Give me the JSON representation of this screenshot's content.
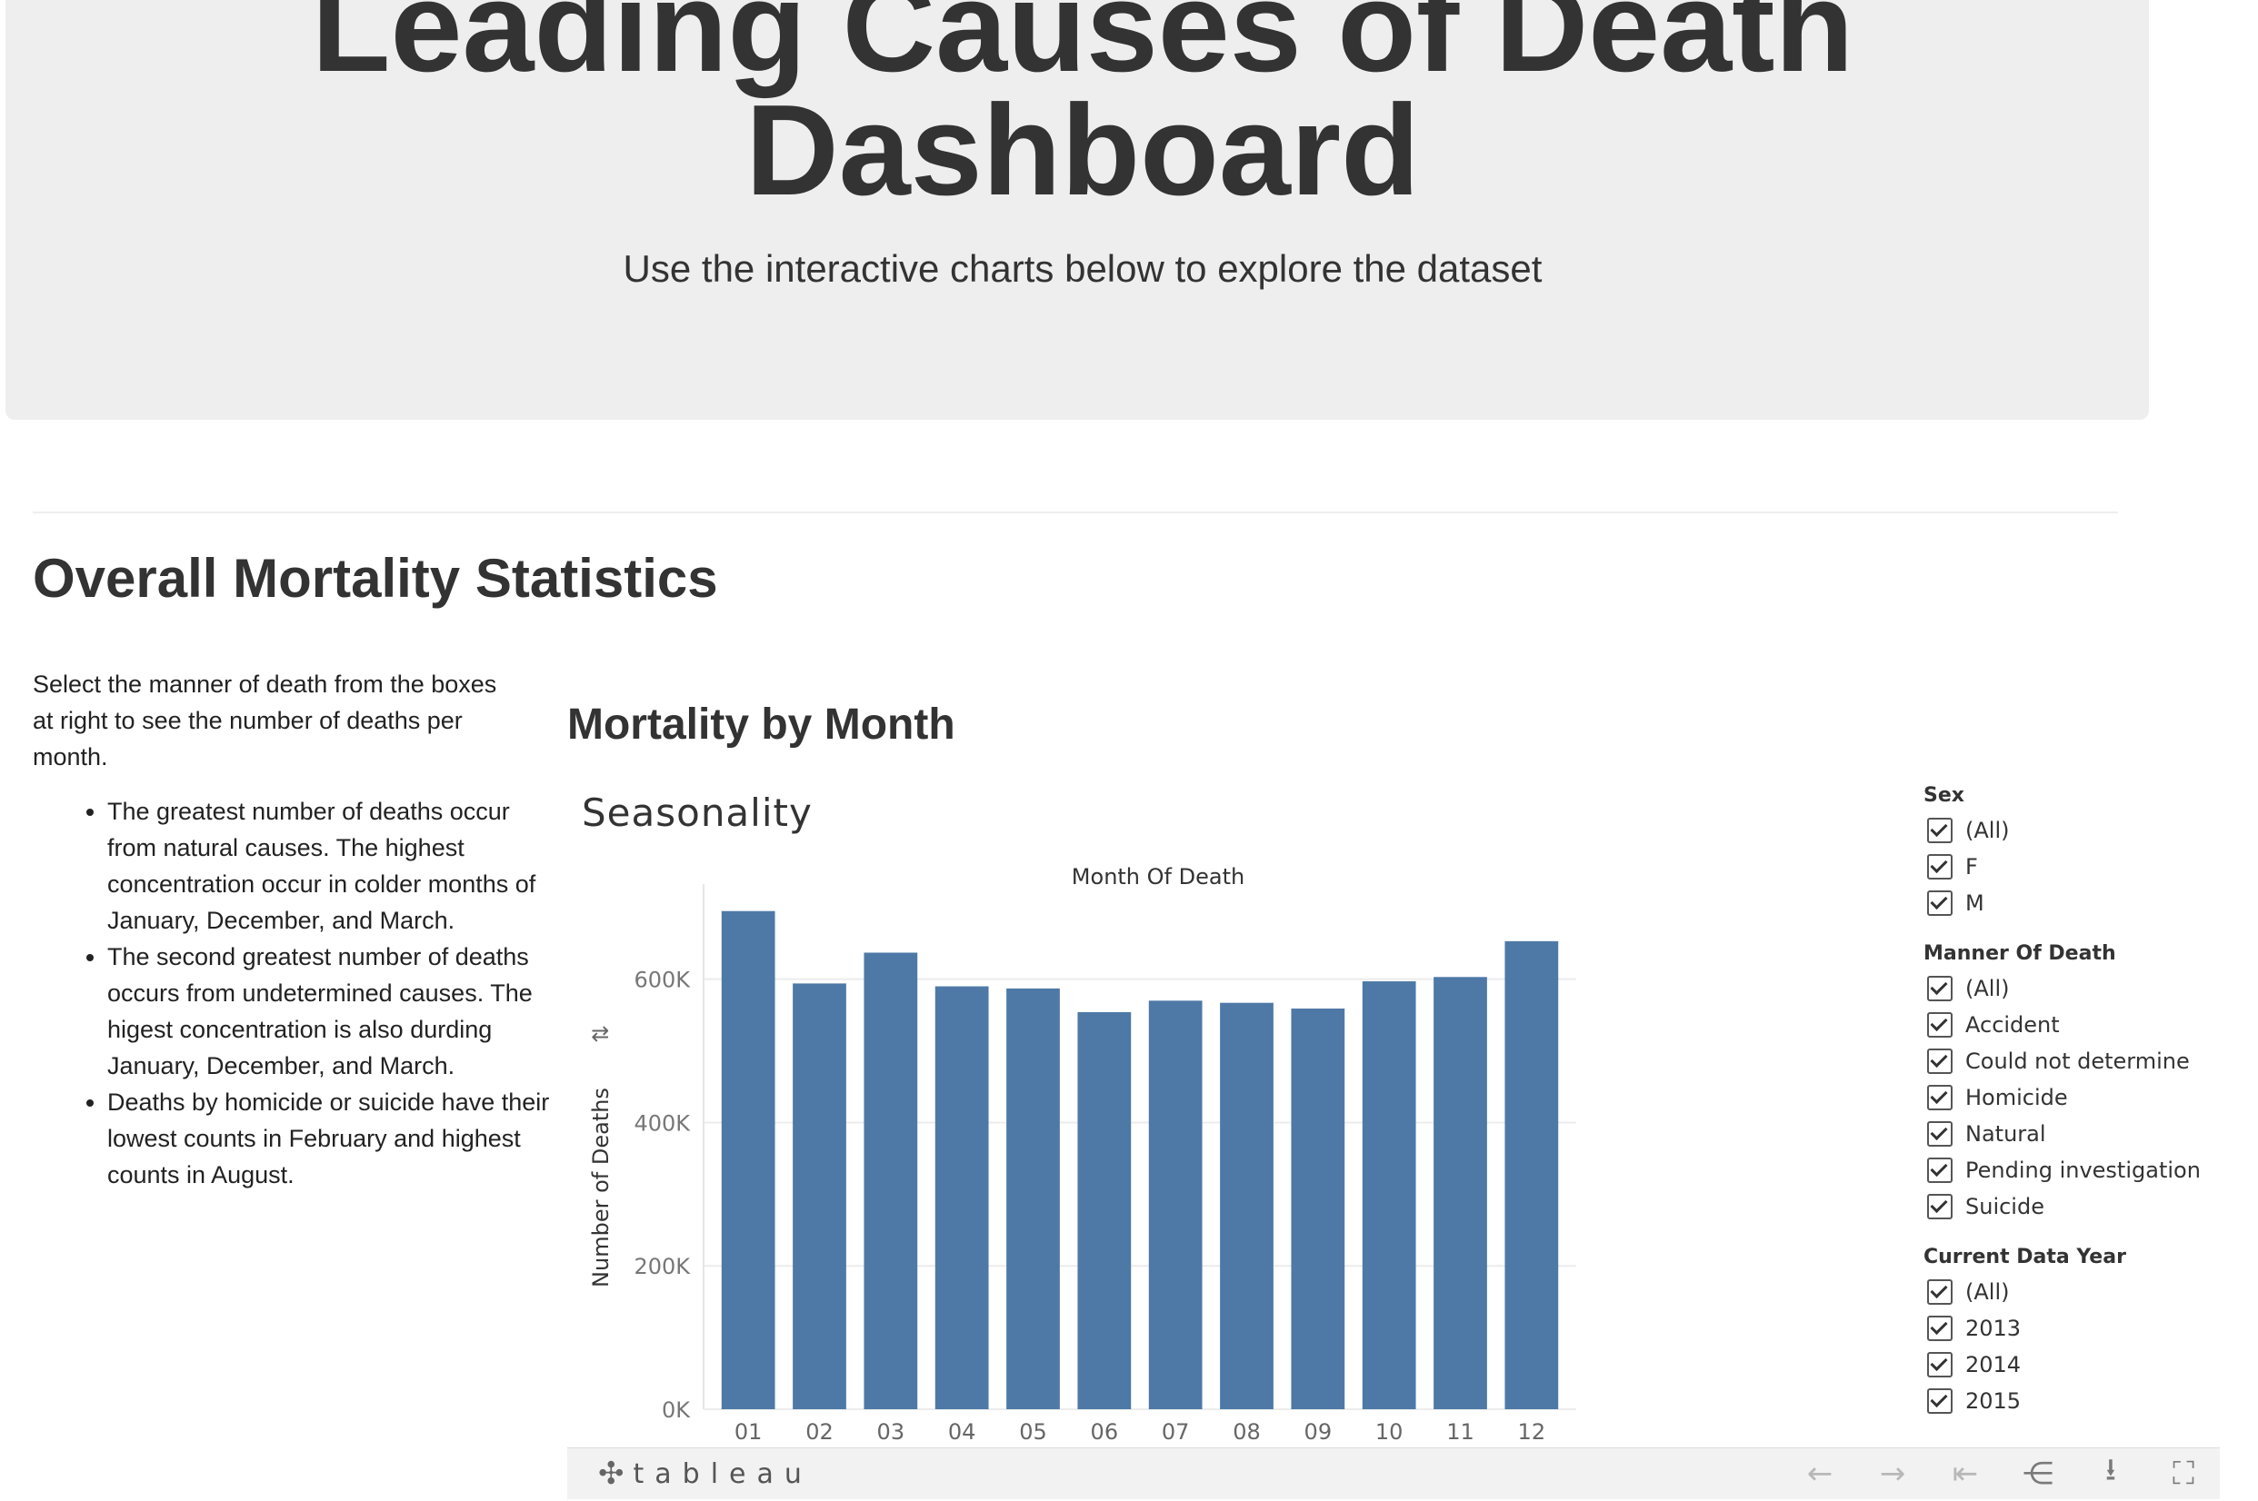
{
  "header": {
    "title_line1": "Leading Causes of Death",
    "title_line2": "Dashboard",
    "subtitle": "Use the interactive charts below to explore the dataset"
  },
  "section": {
    "title": "Overall Mortality Statistics",
    "intro": "Select the manner of death from the boxes at right to see the number of deaths per month.",
    "bullets": [
      "The greatest number of deaths occur from natural causes. The highest concentration occur in colder months of January, December, and March.",
      "The second greatest number of deaths occurs from undetermined causes. The higest concentration is also durding January, December, and March.",
      "Deaths by homicide or suicide have their lowest counts in February and highest counts in August."
    ]
  },
  "viz": {
    "heading": "Mortality by Month",
    "sheet_title": "Seasonality",
    "sort_icon": "sort-icon",
    "bar_color": "#4e79a7"
  },
  "chart_data": {
    "type": "bar",
    "title": "Month Of Death",
    "xlabel": "Month Of Death",
    "ylabel": "Number of Deaths",
    "categories": [
      "01",
      "02",
      "03",
      "04",
      "05",
      "06",
      "07",
      "08",
      "09",
      "10",
      "11",
      "12"
    ],
    "values": [
      695000,
      594000,
      637000,
      590000,
      587000,
      554000,
      570000,
      567000,
      559000,
      597000,
      603000,
      653000
    ],
    "ylim": [
      0,
      720000
    ],
    "yticks": [
      0,
      200000,
      400000,
      600000
    ],
    "ytick_labels": [
      "0K",
      "200K",
      "400K",
      "600K"
    ],
    "grid": true
  },
  "filters": {
    "sex": {
      "title": "Sex",
      "options": [
        "(All)",
        "F",
        "M"
      ]
    },
    "manner": {
      "title": "Manner Of Death",
      "options": [
        "(All)",
        "Accident",
        "Could not determine",
        "Homicide",
        "Natural",
        "Pending investigation",
        "Suicide"
      ]
    },
    "year": {
      "title": "Current Data Year",
      "options": [
        "(All)",
        "2013",
        "2014",
        "2015"
      ]
    }
  },
  "toolbar": {
    "brand": "tableau",
    "brand_icon": "tableau-logo-icon",
    "icons": [
      "undo-icon",
      "redo-icon",
      "revert-icon",
      "share-icon",
      "download-icon",
      "fullscreen-icon"
    ]
  }
}
